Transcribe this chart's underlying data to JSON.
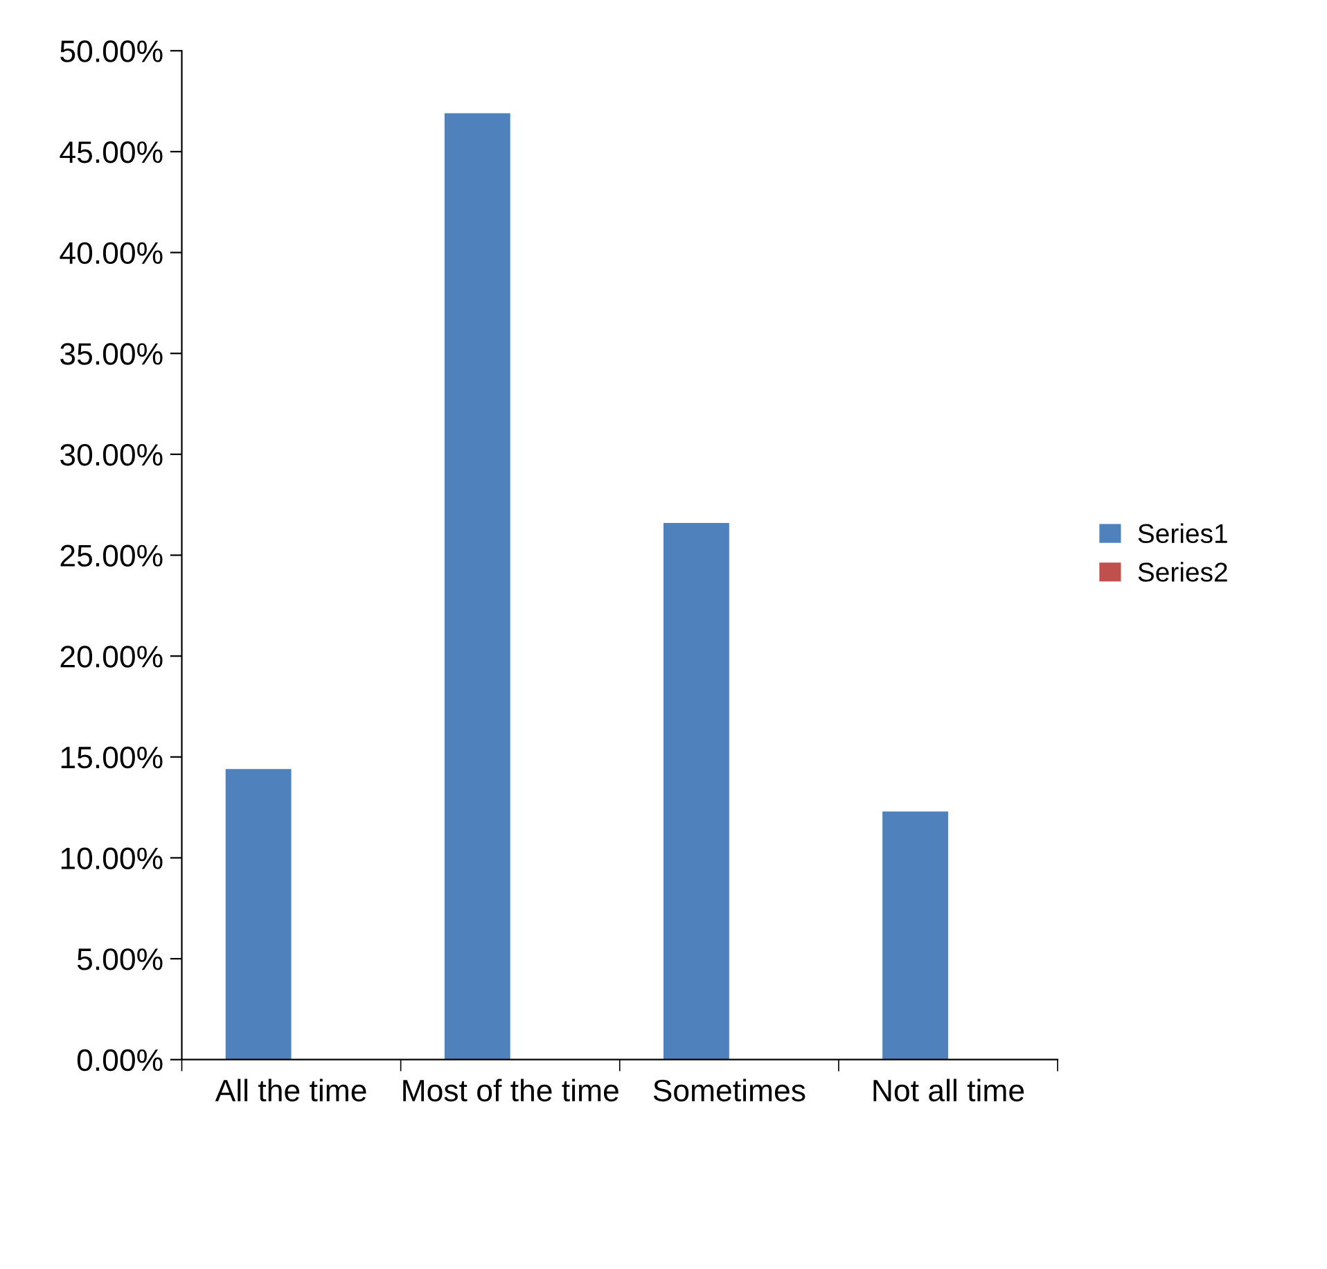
{
  "chart_data": {
    "type": "bar",
    "categories": [
      "All the time",
      "Most of the time",
      "Sometimes",
      "Not all time"
    ],
    "series": [
      {
        "name": "Series1",
        "color": "#4f81bd",
        "values": [
          14.4,
          46.9,
          26.6,
          12.3
        ]
      },
      {
        "name": "Series2",
        "color": "#c0504d",
        "values": [
          null,
          null,
          null,
          null
        ]
      }
    ],
    "ylim": [
      0,
      50
    ],
    "yticks": [
      {
        "value": 0,
        "label": "0.00%"
      },
      {
        "value": 5,
        "label": "5.00%"
      },
      {
        "value": 10,
        "label": "10.00%"
      },
      {
        "value": 15,
        "label": "15.00%"
      },
      {
        "value": 20,
        "label": "20.00%"
      },
      {
        "value": 25,
        "label": "25.00%"
      },
      {
        "value": 30,
        "label": "30.00%"
      },
      {
        "value": 35,
        "label": "35.00%"
      },
      {
        "value": 40,
        "label": "40.00%"
      },
      {
        "value": 45,
        "label": "45.00%"
      },
      {
        "value": 50,
        "label": "50.00%"
      }
    ],
    "grid": false,
    "legend": "right"
  }
}
